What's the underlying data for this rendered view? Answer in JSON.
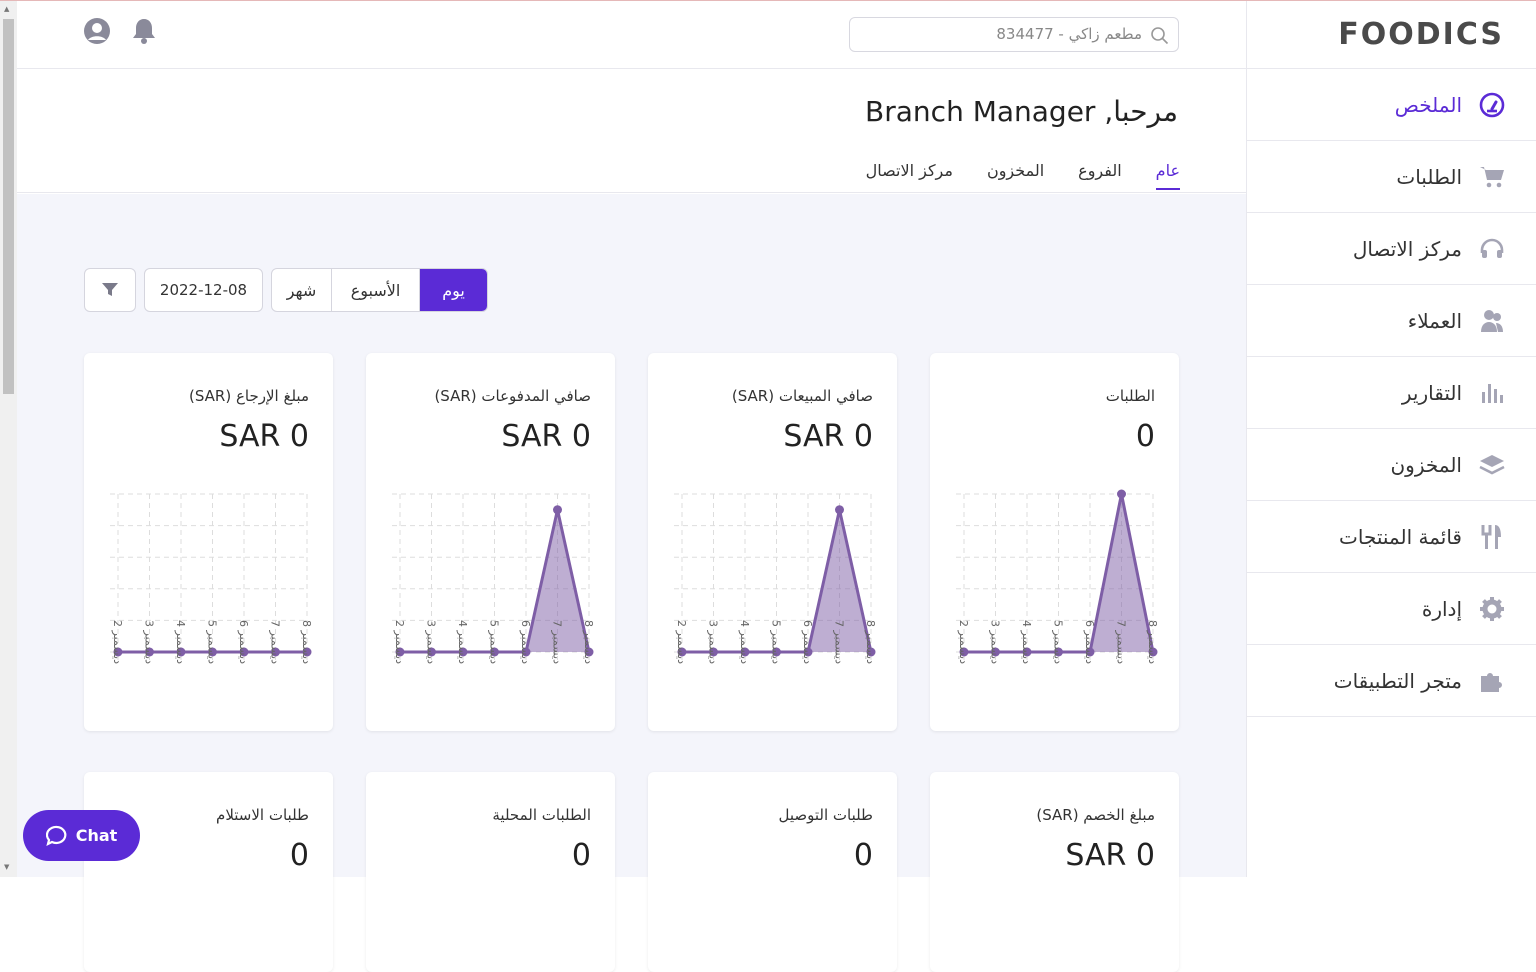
{
  "brand": {
    "logo": "FOODICS",
    "accent": "#5b2bd6",
    "chart_color": "#7e5ea6"
  },
  "sidebar": {
    "items": [
      {
        "label": "الملخص",
        "icon": "dashboard-gauge-icon",
        "active": true
      },
      {
        "label": "الطلبات",
        "icon": "cart-icon"
      },
      {
        "label": "مركز الاتصال",
        "icon": "headset-icon"
      },
      {
        "label": "العملاء",
        "icon": "users-icon"
      },
      {
        "label": "التقارير",
        "icon": "bar-chart-icon"
      },
      {
        "label": "المخزون",
        "icon": "layers-icon"
      },
      {
        "label": "قائمة المنتجات",
        "icon": "utensils-icon"
      },
      {
        "label": "إدارة",
        "icon": "gear-icon"
      },
      {
        "label": "متجر التطبيقات",
        "icon": "puzzle-icon"
      }
    ]
  },
  "topbar": {
    "search_value": "مطعم زاكي - 834477"
  },
  "header": {
    "title": "مرحبا, Branch Manager",
    "tabs": [
      {
        "label": "عام",
        "active": true
      },
      {
        "label": "الفروع"
      },
      {
        "label": "المخزون"
      },
      {
        "label": "مركز الاتصال"
      }
    ]
  },
  "filters": {
    "periods": [
      {
        "label": "يوم",
        "active": true
      },
      {
        "label": "الأسبوع"
      },
      {
        "label": "شهر"
      }
    ],
    "date": "2022-12-08"
  },
  "cards": [
    {
      "label": "الطلبات",
      "value": "0"
    },
    {
      "label": "صافي المبيعات (SAR)",
      "value": "SAR 0"
    },
    {
      "label": "صافي المدفوعات (SAR)",
      "value": "SAR 0"
    },
    {
      "label": "مبلغ الإرجاع (SAR)",
      "value": "SAR 0"
    },
    {
      "label": "مبلغ الخصم (SAR)",
      "value": "SAR 0"
    },
    {
      "label": "طلبات التوصيل",
      "value": "0"
    },
    {
      "label": "الطلبات المحلية",
      "value": "0"
    },
    {
      "label": "طلبات الاستلام",
      "value": "0"
    }
  ],
  "chart_data": [
    {
      "type": "area",
      "x": [
        "ديسمبر 2",
        "ديسمبر 3",
        "ديسمبر 4",
        "ديسمبر 5",
        "ديسمبر 6",
        "ديسمبر 7",
        "ديسمبر 8"
      ],
      "values": [
        0,
        0,
        0,
        0,
        0,
        1,
        0
      ],
      "ylim": [
        0,
        1
      ],
      "grid": true
    },
    {
      "type": "area",
      "x": [
        "ديسمبر 2",
        "ديسمبر 3",
        "ديسمبر 4",
        "ديسمبر 5",
        "ديسمبر 6",
        "ديسمبر 7",
        "ديسمبر 8"
      ],
      "values": [
        0,
        0,
        0,
        0,
        0,
        0.9,
        0
      ],
      "ylim": [
        0,
        1
      ],
      "grid": true
    },
    {
      "type": "area",
      "x": [
        "ديسمبر 2",
        "ديسمبر 3",
        "ديسمبر 4",
        "ديسمبر 5",
        "ديسمبر 6",
        "ديسمبر 7",
        "ديسمبر 8"
      ],
      "values": [
        0,
        0,
        0,
        0,
        0,
        0.9,
        0
      ],
      "ylim": [
        0,
        1
      ],
      "grid": true
    },
    {
      "type": "area",
      "x": [
        "ديسمبر 2",
        "ديسمبر 3",
        "ديسمبر 4",
        "ديسمبر 5",
        "ديسمبر 6",
        "ديسمبر 7",
        "ديسمبر 8"
      ],
      "values": [
        0,
        0,
        0,
        0,
        0,
        0,
        0
      ],
      "ylim": [
        0,
        1
      ],
      "grid": true
    }
  ],
  "chat": {
    "label": "Chat"
  }
}
